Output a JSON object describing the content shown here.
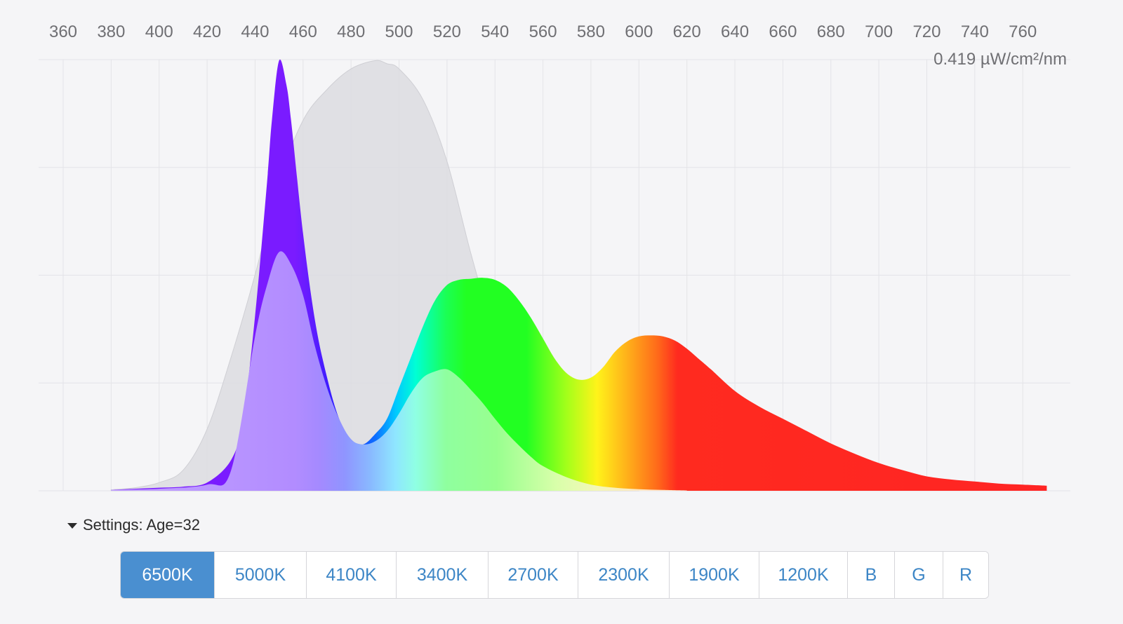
{
  "chart_data": {
    "type": "area",
    "xlabel": "",
    "ylabel": "",
    "x_ticks": [
      360,
      380,
      400,
      420,
      440,
      460,
      480,
      500,
      520,
      540,
      560,
      580,
      600,
      620,
      640,
      660,
      680,
      700,
      720,
      740,
      760
    ],
    "xlim": [
      350,
      770
    ],
    "ylim": [
      0,
      0.419
    ],
    "y_max_label": "0.419 µW/cm²/nm",
    "grid": true,
    "series": [
      {
        "role": "spectrum",
        "fill": "visible-spectrum gradient",
        "x": [
          380,
          390,
          400,
          410,
          420,
          430,
          435,
          440,
          445,
          447,
          450,
          453,
          455,
          460,
          465,
          470,
          475,
          480,
          485,
          490,
          495,
          500,
          505,
          510,
          515,
          520,
          525,
          530,
          535,
          540,
          545,
          550,
          555,
          560,
          565,
          570,
          575,
          580,
          585,
          590,
          595,
          600,
          605,
          610,
          615,
          620,
          625,
          630,
          640,
          650,
          660,
          670,
          680,
          690,
          700,
          710,
          720,
          730,
          740,
          750,
          760,
          770
        ],
        "y": [
          0.001,
          0.002,
          0.003,
          0.004,
          0.008,
          0.03,
          0.07,
          0.17,
          0.3,
          0.36,
          0.418,
          0.395,
          0.36,
          0.25,
          0.165,
          0.11,
          0.07,
          0.05,
          0.045,
          0.055,
          0.07,
          0.1,
          0.13,
          0.16,
          0.185,
          0.2,
          0.205,
          0.206,
          0.207,
          0.205,
          0.198,
          0.185,
          0.168,
          0.148,
          0.128,
          0.114,
          0.108,
          0.11,
          0.12,
          0.135,
          0.145,
          0.15,
          0.151,
          0.15,
          0.146,
          0.138,
          0.128,
          0.118,
          0.097,
          0.082,
          0.07,
          0.058,
          0.046,
          0.036,
          0.027,
          0.02,
          0.014,
          0.011,
          0.009,
          0.007,
          0.006,
          0.005
        ]
      },
      {
        "role": "age-filtered",
        "fill": "light pastel gradient",
        "x": [
          380,
          400,
          420,
          430,
          440,
          445,
          450,
          455,
          460,
          465,
          470,
          475,
          480,
          485,
          490,
          495,
          500,
          505,
          510,
          515,
          520,
          525,
          530,
          535,
          540,
          545,
          550,
          555,
          560,
          570,
          580,
          590,
          600,
          610,
          620
        ],
        "y": [
          0.001,
          0.002,
          0.006,
          0.02,
          0.15,
          0.2,
          0.232,
          0.22,
          0.19,
          0.14,
          0.1,
          0.07,
          0.05,
          0.045,
          0.048,
          0.058,
          0.075,
          0.095,
          0.11,
          0.116,
          0.118,
          0.11,
          0.098,
          0.085,
          0.07,
          0.056,
          0.044,
          0.033,
          0.024,
          0.013,
          0.006,
          0.003,
          0.0015,
          0.0008,
          0.0003
        ]
      },
      {
        "role": "sensitivity-curve",
        "fill": "grey",
        "x": [
          380,
          390,
          400,
          410,
          420,
          430,
          440,
          450,
          460,
          470,
          480,
          490,
          495,
          500,
          510,
          520,
          530,
          540,
          550,
          560,
          570,
          580,
          590,
          600
        ],
        "y": [
          0.001,
          0.003,
          0.008,
          0.02,
          0.06,
          0.13,
          0.21,
          0.3,
          0.36,
          0.39,
          0.41,
          0.418,
          0.415,
          0.41,
          0.38,
          0.32,
          0.23,
          0.15,
          0.085,
          0.04,
          0.02,
          0.008,
          0.003,
          0.001
        ]
      }
    ]
  },
  "settings": {
    "label": "Settings: Age=32"
  },
  "presets": [
    {
      "label": "6500K",
      "active": true
    },
    {
      "label": "5000K",
      "active": false
    },
    {
      "label": "4100K",
      "active": false
    },
    {
      "label": "3400K",
      "active": false
    },
    {
      "label": "2700K",
      "active": false
    },
    {
      "label": "2300K",
      "active": false
    },
    {
      "label": "1900K",
      "active": false
    },
    {
      "label": "1200K",
      "active": false
    },
    {
      "label": "B",
      "active": false
    },
    {
      "label": "G",
      "active": false
    },
    {
      "label": "R",
      "active": false
    }
  ],
  "colors": {
    "active_button": "#4a8fd0",
    "button_text": "#3d86c6",
    "grid": "#e4e4e8",
    "background": "#f5f5f7"
  }
}
